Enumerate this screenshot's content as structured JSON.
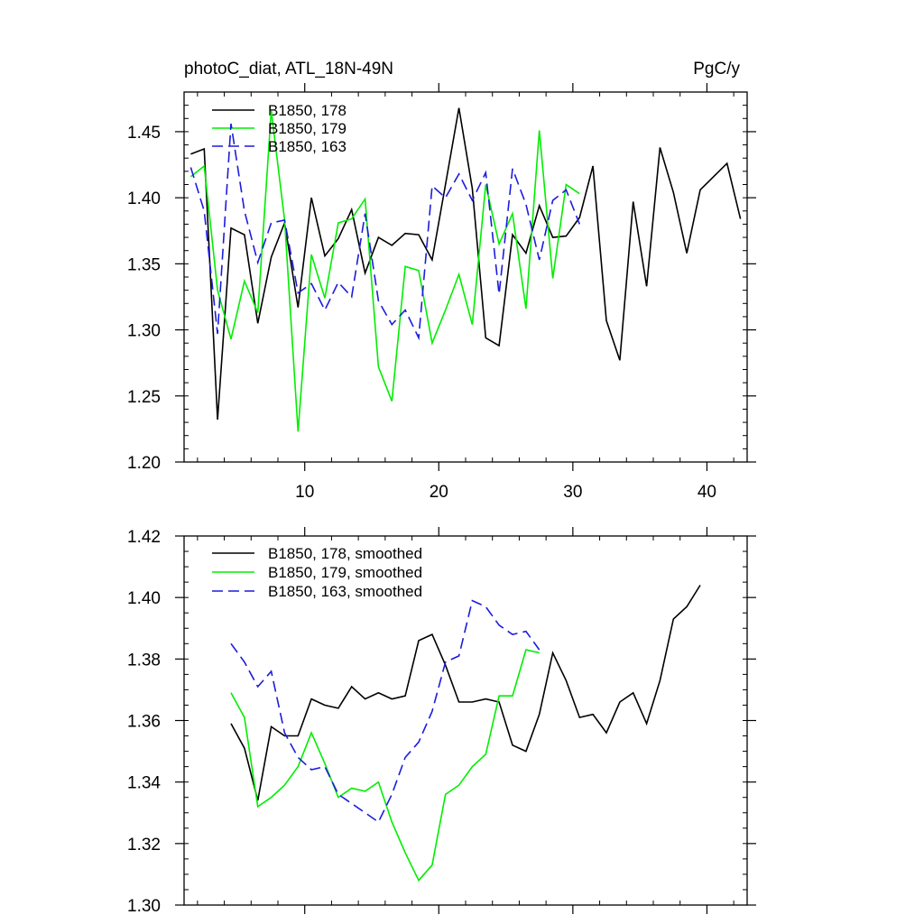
{
  "chart_data": [
    {
      "type": "line",
      "title": "photoC_diat, ATL_18N-49N",
      "units": "PgC/y",
      "xlabel": "",
      "ylabel": "",
      "xlim": [
        1,
        43
      ],
      "ylim": [
        1.2,
        1.48
      ],
      "xticks": [
        10,
        20,
        30,
        40
      ],
      "xtick_labels": [
        "10",
        "20",
        "30",
        "40"
      ],
      "yticks": [
        1.2,
        1.25,
        1.3,
        1.35,
        1.4,
        1.45
      ],
      "ytick_labels": [
        "1.20",
        "1.25",
        "1.30",
        "1.35",
        "1.40",
        "1.45"
      ],
      "legend_position": "top-left",
      "series": [
        {
          "name": "B1850, 178",
          "color": "#000000",
          "dash": "solid",
          "x": [
            1.5,
            2.5,
            3.5,
            4.5,
            5.5,
            6.5,
            7.5,
            8.5,
            9.5,
            10.5,
            11.5,
            12.5,
            13.5,
            14.5,
            15.5,
            16.5,
            17.5,
            18.5,
            19.5,
            20.5,
            21.5,
            22.5,
            23.5,
            24.5,
            25.5,
            26.5,
            27.5,
            28.5,
            29.5,
            30.5,
            31.5,
            32.5,
            33.5,
            34.5,
            35.5,
            36.5,
            37.5,
            38.5,
            39.5,
            40.5,
            41.5,
            42.5
          ],
          "values": [
            1.433,
            1.437,
            1.232,
            1.377,
            1.372,
            1.305,
            1.355,
            1.381,
            1.317,
            1.4,
            1.356,
            1.369,
            1.391,
            1.343,
            1.37,
            1.364,
            1.373,
            1.372,
            1.353,
            1.41,
            1.468,
            1.407,
            1.294,
            1.288,
            1.372,
            1.358,
            1.394,
            1.37,
            1.371,
            1.385,
            1.424,
            1.307,
            1.277,
            1.397,
            1.333,
            1.438,
            1.404,
            1.358,
            1.406,
            1.416,
            1.426,
            1.384
          ]
        },
        {
          "name": "B1850, 179",
          "color": "#00ee00",
          "dash": "solid",
          "x": [
            1.5,
            2.5,
            3.5,
            4.5,
            5.5,
            6.5,
            7.5,
            8.5,
            9.5,
            10.5,
            11.5,
            12.5,
            13.5,
            14.5,
            15.5,
            16.5,
            17.5,
            18.5,
            19.5,
            20.5,
            21.5,
            22.5,
            23.5,
            24.5,
            25.5,
            26.5,
            27.5,
            28.5,
            29.5,
            30.5
          ],
          "values": [
            1.416,
            1.424,
            1.33,
            1.293,
            1.337,
            1.313,
            1.466,
            1.383,
            1.223,
            1.357,
            1.324,
            1.381,
            1.384,
            1.399,
            1.272,
            1.246,
            1.348,
            1.345,
            1.29,
            1.315,
            1.342,
            1.304,
            1.41,
            1.365,
            1.388,
            1.316,
            1.451,
            1.339,
            1.41,
            1.403
          ]
        },
        {
          "name": "B1850, 163",
          "color": "#1c1cdc",
          "dash": "dashed",
          "x": [
            1.5,
            2.5,
            3.5,
            4.5,
            5.5,
            6.5,
            7.5,
            8.5,
            9.5,
            10.5,
            11.5,
            12.5,
            13.5,
            14.5,
            15.5,
            16.5,
            17.5,
            18.5,
            19.5,
            20.5,
            21.5,
            22.5,
            23.5,
            24.5,
            25.5,
            26.5,
            27.5,
            28.5,
            29.5,
            30.5
          ],
          "values": [
            1.423,
            1.39,
            1.297,
            1.456,
            1.39,
            1.351,
            1.381,
            1.383,
            1.328,
            1.335,
            1.315,
            1.336,
            1.325,
            1.388,
            1.322,
            1.304,
            1.315,
            1.294,
            1.409,
            1.4,
            1.418,
            1.398,
            1.419,
            1.327,
            1.422,
            1.395,
            1.353,
            1.398,
            1.406,
            1.38
          ]
        }
      ]
    },
    {
      "type": "line",
      "title": "",
      "xlabel": "",
      "ylabel": "",
      "xlim": [
        1,
        43
      ],
      "ylim": [
        1.3,
        1.42
      ],
      "xticks": [
        10,
        20,
        30,
        40
      ],
      "yticks": [
        1.3,
        1.32,
        1.34,
        1.36,
        1.38,
        1.4,
        1.42
      ],
      "ytick_labels": [
        "1.30",
        "1.32",
        "1.34",
        "1.36",
        "1.38",
        "1.40",
        "1.42"
      ],
      "legend_position": "top-left",
      "series": [
        {
          "name": "B1850, 178, smoothed",
          "color": "#000000",
          "dash": "solid",
          "x": [
            4.5,
            5.5,
            6.5,
            7.5,
            8.5,
            9.5,
            10.5,
            11.5,
            12.5,
            13.5,
            14.5,
            15.5,
            16.5,
            17.5,
            18.5,
            19.5,
            20.5,
            21.5,
            22.5,
            23.5,
            24.5,
            25.5,
            26.5,
            27.5,
            28.5,
            29.5,
            30.5,
            31.5,
            32.5,
            33.5,
            34.5,
            35.5,
            36.5,
            37.5,
            38.5,
            39.5
          ],
          "values": [
            1.359,
            1.351,
            1.334,
            1.358,
            1.355,
            1.355,
            1.367,
            1.365,
            1.364,
            1.371,
            1.367,
            1.369,
            1.367,
            1.368,
            1.386,
            1.388,
            1.378,
            1.366,
            1.366,
            1.367,
            1.366,
            1.352,
            1.35,
            1.362,
            1.382,
            1.373,
            1.361,
            1.362,
            1.356,
            1.366,
            1.369,
            1.359,
            1.373,
            1.393,
            1.397,
            1.404
          ]
        },
        {
          "name": "B1850, 179, smoothed",
          "color": "#00ee00",
          "dash": "solid",
          "x": [
            4.5,
            5.5,
            6.5,
            7.5,
            8.5,
            9.5,
            10.5,
            11.5,
            12.5,
            13.5,
            14.5,
            15.5,
            16.5,
            17.5,
            18.5,
            19.5,
            20.5,
            21.5,
            22.5,
            23.5,
            24.5,
            25.5,
            26.5,
            27.5
          ],
          "values": [
            1.369,
            1.361,
            1.332,
            1.335,
            1.339,
            1.345,
            1.356,
            1.346,
            1.335,
            1.338,
            1.337,
            1.34,
            1.327,
            1.317,
            1.308,
            1.313,
            1.336,
            1.339,
            1.345,
            1.349,
            1.368,
            1.368,
            1.383,
            1.382
          ]
        },
        {
          "name": "B1850, 163, smoothed",
          "color": "#1c1cdc",
          "dash": "dashed",
          "x": [
            4.5,
            5.5,
            6.5,
            7.5,
            8.5,
            9.5,
            10.5,
            11.5,
            12.5,
            13.5,
            14.5,
            15.5,
            16.5,
            17.5,
            18.5,
            19.5,
            20.5,
            21.5,
            22.5,
            23.5,
            24.5,
            25.5,
            26.5,
            27.5
          ],
          "values": [
            1.385,
            1.379,
            1.371,
            1.376,
            1.356,
            1.348,
            1.344,
            1.345,
            1.336,
            1.333,
            1.33,
            1.327,
            1.336,
            1.348,
            1.353,
            1.363,
            1.379,
            1.381,
            1.399,
            1.397,
            1.391,
            1.388,
            1.389,
            1.383
          ]
        }
      ]
    }
  ]
}
